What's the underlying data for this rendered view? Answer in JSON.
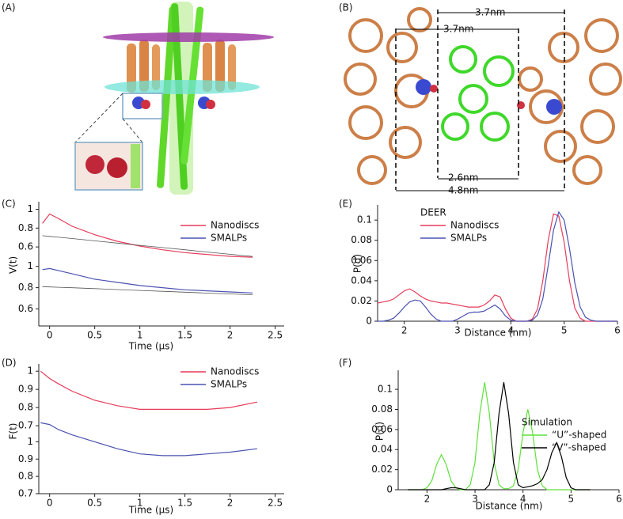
{
  "panel_labels": [
    "(A)",
    "(B)",
    "(C)",
    "(D)",
    "(E)",
    "(F)"
  ],
  "annotations": [
    "3.7nm",
    "3.7nm",
    "2.6nm",
    "4.8nm"
  ],
  "chart_data": [
    {
      "type": "line",
      "ylabel": "V(t)",
      "xlabel": "Time (μs)",
      "x": [
        -0.08,
        0,
        0.1,
        0.25,
        0.5,
        0.75,
        1,
        1.25,
        1.5,
        1.75,
        2,
        2.25
      ],
      "xlim": [
        -0.12,
        2.6
      ],
      "xticks": [
        0,
        0.5,
        1,
        1.5,
        2,
        2.5
      ],
      "subplots": [
        {
          "ylim": [
            0.45,
            1.08
          ],
          "yticks": [
            0.6,
            0.8,
            1
          ],
          "series": [
            {
              "name": "Nanodiscs",
              "color": "#e63c5a",
              "values": [
                0.85,
                0.95,
                0.9,
                0.82,
                0.73,
                0.66,
                0.61,
                0.57,
                0.54,
                0.52,
                0.5,
                0.49
              ]
            },
            {
              "color": "#555555",
              "values": [
                0.72,
                0.712,
                0.703,
                0.689,
                0.665,
                0.641,
                0.617,
                0.594,
                0.57,
                0.546,
                0.522,
                0.499
              ]
            }
          ]
        },
        {
          "ylim": [
            0.44,
            1.05
          ],
          "yticks": [
            0.6,
            0.8,
            1
          ],
          "series": [
            {
              "name": "SMALPs",
              "color": "#4a52b0",
              "values": [
                0.97,
                0.98,
                0.96,
                0.93,
                0.88,
                0.85,
                0.82,
                0.8,
                0.78,
                0.77,
                0.76,
                0.75
              ]
            },
            {
              "color": "#555555",
              "values": [
                0.81,
                0.807,
                0.804,
                0.799,
                0.791,
                0.782,
                0.774,
                0.766,
                0.758,
                0.749,
                0.741,
                0.733
              ]
            }
          ]
        }
      ]
    },
    {
      "type": "line",
      "ylabel": "F(t)",
      "xlabel": "Time (μs)",
      "x": [
        -0.1,
        0,
        0.1,
        0.25,
        0.5,
        0.75,
        1,
        1.25,
        1.5,
        1.75,
        2,
        2.3
      ],
      "xlim": [
        -0.12,
        2.6
      ],
      "xticks": [
        0,
        0.5,
        1,
        1.5,
        2,
        2.5
      ],
      "subplots": [
        {
          "ylim": [
            0.67,
            1.04
          ],
          "yticks": [
            0.7,
            0.8,
            0.9,
            1
          ],
          "series": [
            {
              "name": "Nanodiscs",
              "color": "#e63c5a",
              "values": [
                1.0,
                0.96,
                0.93,
                0.89,
                0.84,
                0.81,
                0.79,
                0.79,
                0.79,
                0.79,
                0.8,
                0.83
              ]
            }
          ]
        },
        {
          "ylim": [
            0.7,
            1.13
          ],
          "yticks": [
            0.7,
            0.8,
            0.9,
            1
          ],
          "series": [
            {
              "name": "SMALPs",
              "color": "#4a52b0",
              "values": [
                1.11,
                1.1,
                1.07,
                1.04,
                1.0,
                0.96,
                0.93,
                0.92,
                0.92,
                0.93,
                0.94,
                0.96
              ]
            }
          ]
        }
      ]
    },
    {
      "type": "line",
      "ylabel": "P(d)",
      "xlabel": "Distance (nm)",
      "legend_title": "DEER",
      "x": [
        1.5,
        1.6,
        1.7,
        1.8,
        1.9,
        2.0,
        2.1,
        2.2,
        2.3,
        2.4,
        2.5,
        2.6,
        2.7,
        2.8,
        2.9,
        3.0,
        3.1,
        3.2,
        3.3,
        3.4,
        3.5,
        3.6,
        3.7,
        3.8,
        3.9,
        4.0,
        4.1,
        4.2,
        4.3,
        4.4,
        4.5,
        4.6,
        4.7,
        4.8,
        4.9,
        5.0,
        5.1,
        5.2,
        5.3,
        5.4,
        5.5,
        5.6,
        5.7,
        5.8,
        5.9,
        6.0
      ],
      "xlim": [
        1.5,
        6
      ],
      "xticks": [
        2,
        3,
        4,
        5,
        6
      ],
      "ylim": [
        0,
        0.115
      ],
      "yticks": [
        0,
        0.02,
        0.04,
        0.06,
        0.08,
        0.1
      ],
      "series": [
        {
          "name": "Nanodiscs",
          "color": "#e63c5a",
          "values": [
            0.018,
            0.019,
            0.02,
            0.022,
            0.026,
            0.03,
            0.032,
            0.029,
            0.025,
            0.022,
            0.02,
            0.019,
            0.018,
            0.018,
            0.017,
            0.016,
            0.015,
            0.014,
            0.014,
            0.014,
            0.016,
            0.02,
            0.026,
            0.024,
            0.012,
            0.003,
            0,
            0,
            0,
            0.002,
            0.012,
            0.04,
            0.08,
            0.106,
            0.104,
            0.078,
            0.04,
            0.013,
            0.003,
            0,
            0,
            0,
            0,
            0,
            0,
            0
          ]
        },
        {
          "name": "SMALPs",
          "color": "#4a52b0",
          "values": [
            0,
            0,
            0.001,
            0.003,
            0.008,
            0.014,
            0.019,
            0.021,
            0.02,
            0.014,
            0.007,
            0.002,
            0,
            0,
            0,
            0.002,
            0.005,
            0.008,
            0.009,
            0.009,
            0.01,
            0.013,
            0.016,
            0.012,
            0.005,
            0.001,
            0,
            0,
            0,
            0.001,
            0.006,
            0.022,
            0.055,
            0.09,
            0.108,
            0.1,
            0.072,
            0.038,
            0.014,
            0.004,
            0.001,
            0,
            0,
            0,
            0,
            0
          ]
        }
      ]
    },
    {
      "type": "line",
      "ylabel": "P(d)",
      "xlabel": "Distance (nm)",
      "legend_title": "Simulation",
      "x": [
        1.6,
        1.7,
        1.8,
        1.9,
        2.0,
        2.1,
        2.2,
        2.3,
        2.4,
        2.5,
        2.6,
        2.7,
        2.8,
        2.9,
        3.0,
        3.1,
        3.2,
        3.3,
        3.4,
        3.5,
        3.6,
        3.7,
        3.8,
        3.9,
        4.0,
        4.1,
        4.2,
        4.3,
        4.4,
        4.5,
        4.6,
        4.7,
        4.8,
        4.9,
        5.0,
        5.1,
        5.2,
        5.3,
        5.4
      ],
      "xlim": [
        1.4,
        6
      ],
      "xticks": [
        2,
        3,
        4,
        5,
        6
      ],
      "ylim": [
        0,
        0.119
      ],
      "yticks": [
        0,
        0.02,
        0.04,
        0.06,
        0.08,
        0.1
      ],
      "series": [
        {
          "name": "“U”-shaped",
          "color": "#5fe03a",
          "values": [
            0,
            0,
            0,
            0,
            0.002,
            0.009,
            0.025,
            0.035,
            0.025,
            0.009,
            0.002,
            0,
            0,
            0.005,
            0.027,
            0.076,
            0.107,
            0.076,
            0.027,
            0.005,
            0.001,
            0.001,
            0.004,
            0.02,
            0.057,
            0.08,
            0.057,
            0.02,
            0.004,
            0,
            0,
            0,
            0,
            0,
            0,
            0,
            0,
            0,
            0
          ]
        },
        {
          "name": "“V”-shaped",
          "color": "#000000",
          "values": [
            0,
            0,
            0,
            0,
            0,
            0,
            0,
            0,
            0.001,
            0.002,
            0.002,
            0.001,
            0,
            0,
            0,
            0,
            0,
            0.005,
            0.027,
            0.076,
            0.107,
            0.076,
            0.027,
            0.005,
            0.002,
            0.003,
            0.004,
            0.006,
            0.01,
            0.02,
            0.037,
            0.047,
            0.033,
            0.012,
            0.002,
            0,
            0,
            0,
            0
          ]
        }
      ]
    }
  ]
}
